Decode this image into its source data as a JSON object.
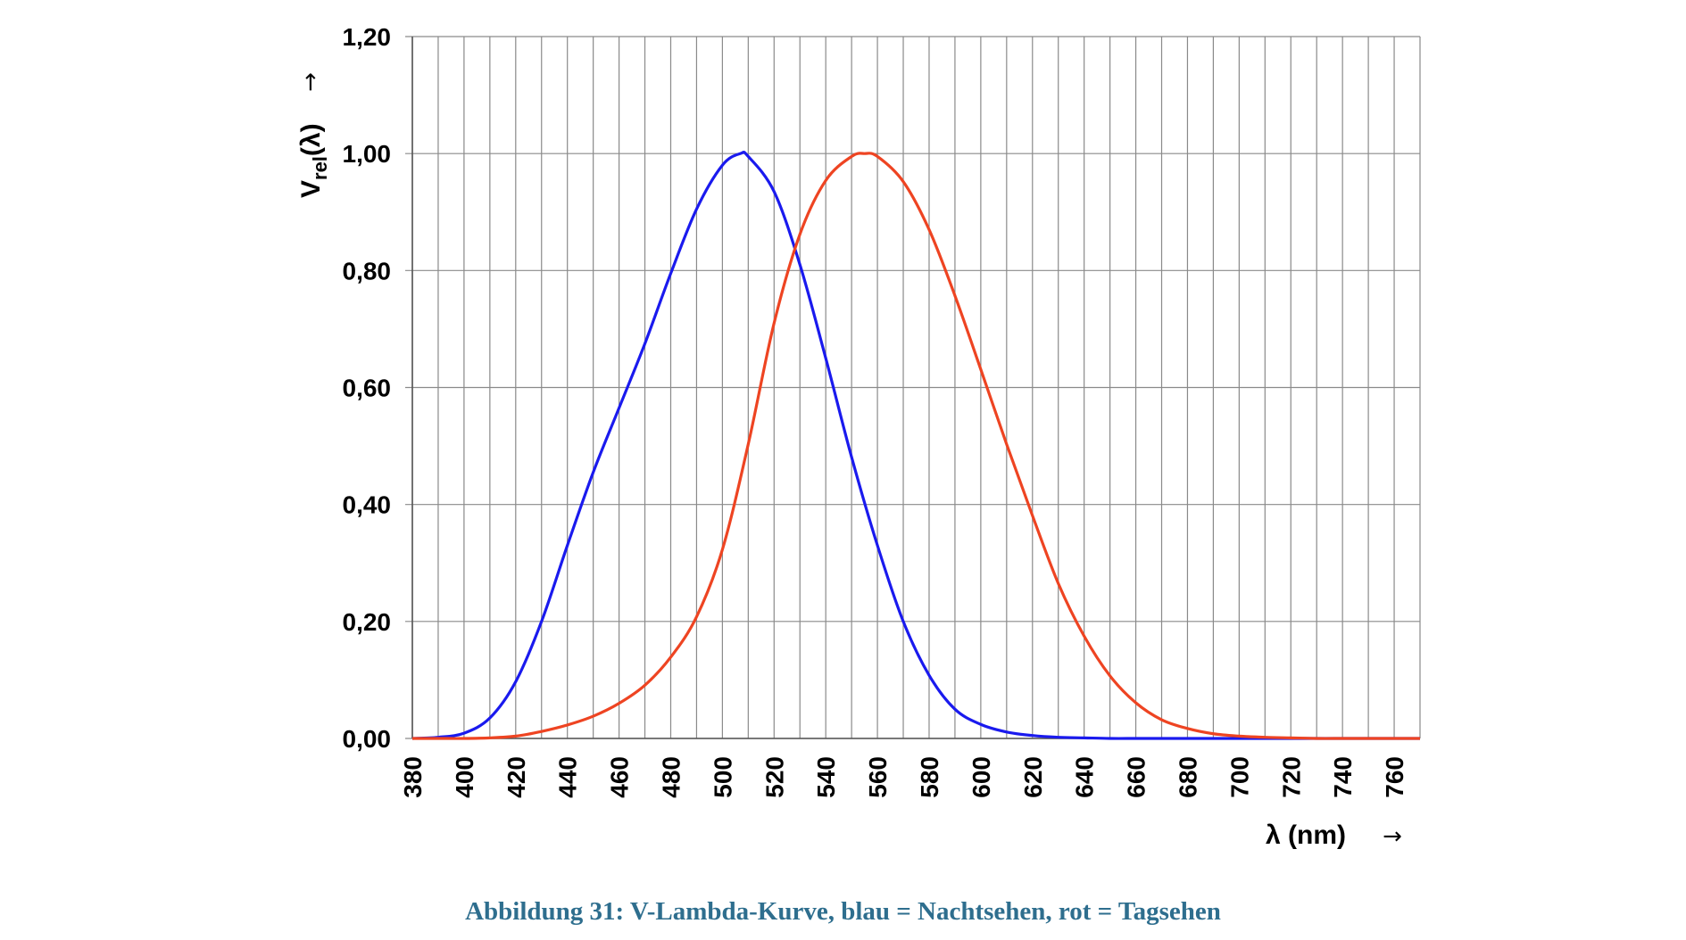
{
  "caption": "Abbildung 31: V-Lambda-Kurve, blau = Nachtsehen, rot = Tagsehen",
  "chart_data": {
    "type": "line",
    "ylabel_main": "V",
    "ylabel_sub": "rel",
    "ylabel_tail": "(λ)",
    "xlabel": "λ (nm)",
    "arrow": "→",
    "xlim": [
      380,
      770
    ],
    "ylim": [
      0,
      1.2
    ],
    "x_ticks": [
      "380",
      "400",
      "420",
      "440",
      "460",
      "480",
      "500",
      "520",
      "540",
      "560",
      "580",
      "600",
      "620",
      "640",
      "660",
      "680",
      "700",
      "720",
      "740",
      "760"
    ],
    "y_ticks": [
      "0,00",
      "0,20",
      "0,40",
      "0,60",
      "0,80",
      "1,00",
      "1,20"
    ],
    "grid": true,
    "series": [
      {
        "color": "#1a1aee",
        "x": [
          380,
          390,
          400,
          410,
          420,
          430,
          440,
          450,
          460,
          470,
          480,
          490,
          500,
          507,
          510,
          520,
          530,
          540,
          550,
          560,
          570,
          580,
          590,
          600,
          610,
          620,
          630,
          640,
          650,
          660,
          670,
          680,
          690,
          700,
          710,
          720,
          730,
          740,
          750,
          760,
          770
        ],
        "y": [
          0.0,
          0.002,
          0.009,
          0.035,
          0.097,
          0.2,
          0.33,
          0.455,
          0.565,
          0.675,
          0.795,
          0.905,
          0.98,
          1.0,
          0.995,
          0.935,
          0.81,
          0.65,
          0.481,
          0.33,
          0.2,
          0.108,
          0.05,
          0.024,
          0.011,
          0.005,
          0.002,
          0.001,
          0.0,
          0.0,
          0.0,
          0.0,
          0.0,
          0.0,
          0.0,
          0.0,
          0.0,
          0.0,
          0.0,
          0.0,
          0.0
        ]
      },
      {
        "color": "#ee4422",
        "x": [
          380,
          390,
          400,
          410,
          420,
          430,
          440,
          450,
          460,
          470,
          480,
          490,
          500,
          510,
          520,
          530,
          540,
          550,
          555,
          560,
          570,
          580,
          590,
          600,
          610,
          620,
          630,
          640,
          650,
          660,
          670,
          680,
          690,
          700,
          710,
          720,
          730,
          740,
          750,
          760,
          770
        ],
        "y": [
          0.0,
          0.0,
          0.0,
          0.001,
          0.004,
          0.012,
          0.023,
          0.038,
          0.06,
          0.091,
          0.139,
          0.208,
          0.323,
          0.503,
          0.71,
          0.862,
          0.954,
          0.995,
          1.0,
          0.995,
          0.952,
          0.87,
          0.757,
          0.631,
          0.503,
          0.381,
          0.265,
          0.175,
          0.107,
          0.061,
          0.032,
          0.017,
          0.008,
          0.004,
          0.002,
          0.001,
          0.0,
          0.0,
          0.0,
          0.0,
          0.0
        ]
      }
    ]
  }
}
